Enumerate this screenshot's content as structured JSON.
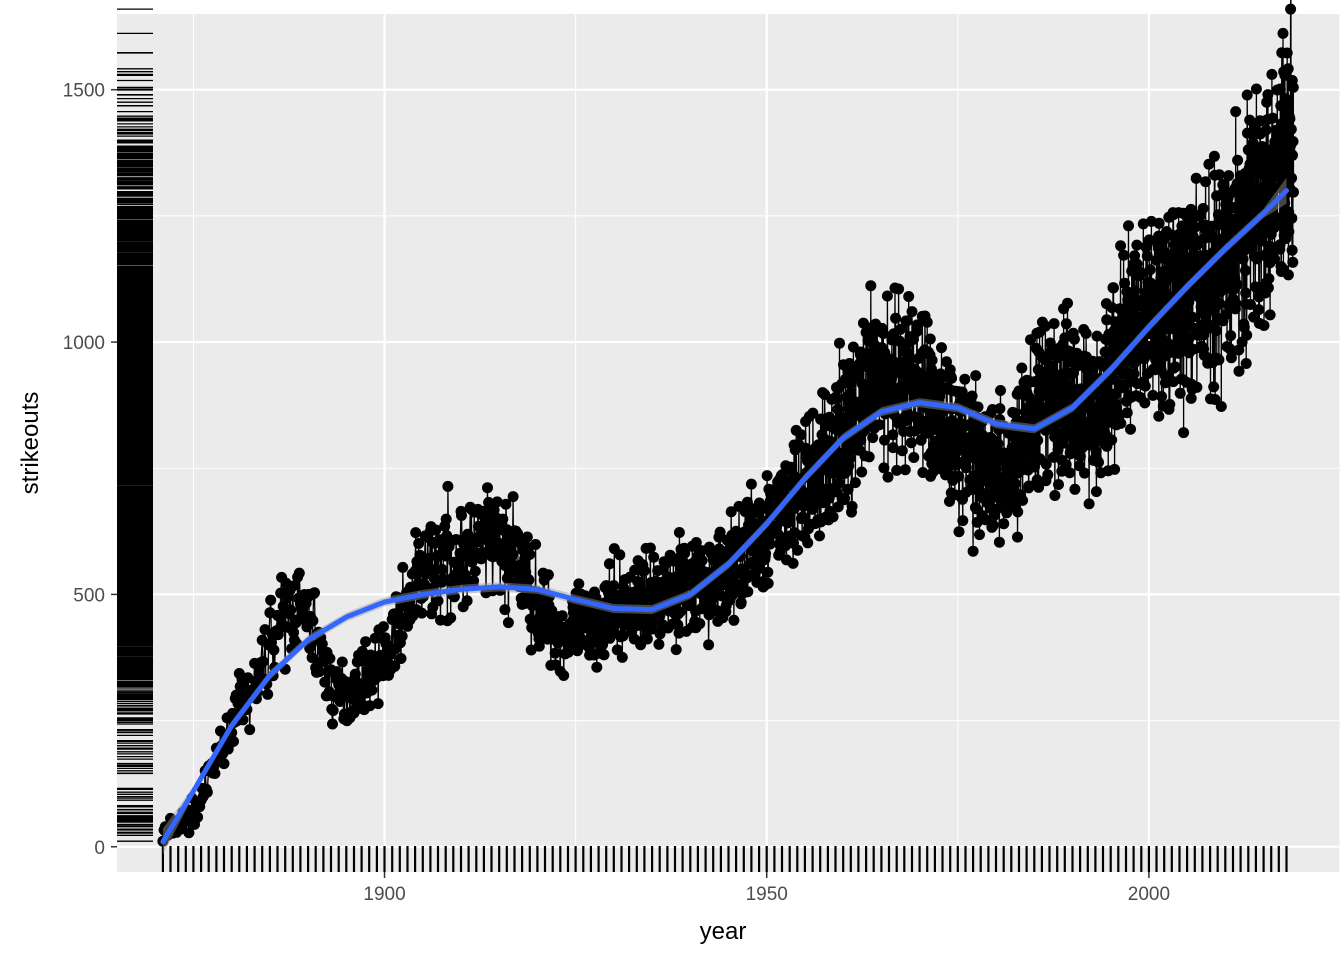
{
  "chart_data": {
    "type": "line",
    "title": "",
    "xlabel": "year",
    "ylabel": "strikeouts",
    "xlim": [
      1865,
      2025
    ],
    "ylim": [
      -50,
      1650
    ],
    "x_ticks": [
      1900,
      1950,
      2000
    ],
    "y_ticks": [
      0,
      500,
      1000,
      1500
    ],
    "x_tick_labels": [
      "1900",
      "1950",
      "2000"
    ],
    "y_tick_labels": [
      "0",
      "500",
      "1000",
      "1500"
    ],
    "grid": true,
    "legend": "none",
    "x_range": [
      1871,
      2018
    ],
    "rug": {
      "x": true,
      "y": true
    },
    "series": [
      {
        "marks": "points connected by line",
        "color": "#000000",
        "x_range": [
          1871,
          2018
        ],
        "y_approx": [
          [
            1871,
            25
          ],
          [
            1875,
            70
          ],
          [
            1878,
            190
          ],
          [
            1880,
            260
          ],
          [
            1883,
            320
          ],
          [
            1885,
            420
          ],
          [
            1888,
            480
          ],
          [
            1890,
            440
          ],
          [
            1893,
            300
          ],
          [
            1896,
            320
          ],
          [
            1900,
            380
          ],
          [
            1903,
            500
          ],
          [
            1906,
            560
          ],
          [
            1910,
            580
          ],
          [
            1914,
            600
          ],
          [
            1917,
            560
          ],
          [
            1920,
            470
          ],
          [
            1923,
            420
          ],
          [
            1926,
            440
          ],
          [
            1930,
            470
          ],
          [
            1934,
            490
          ],
          [
            1938,
            520
          ],
          [
            1942,
            510
          ],
          [
            1945,
            560
          ],
          [
            1948,
            600
          ],
          [
            1951,
            650
          ],
          [
            1954,
            700
          ],
          [
            1957,
            760
          ],
          [
            1960,
            830
          ],
          [
            1963,
            900
          ],
          [
            1966,
            940
          ],
          [
            1969,
            920
          ],
          [
            1972,
            860
          ],
          [
            1975,
            800
          ],
          [
            1978,
            770
          ],
          [
            1981,
            740
          ],
          [
            1984,
            840
          ],
          [
            1987,
            880
          ],
          [
            1990,
            890
          ],
          [
            1993,
            870
          ],
          [
            1996,
            980
          ],
          [
            1999,
            1050
          ],
          [
            2002,
            1070
          ],
          [
            2005,
            1090
          ],
          [
            2008,
            1130
          ],
          [
            2011,
            1200
          ],
          [
            2014,
            1280
          ],
          [
            2017,
            1380
          ],
          [
            2018,
            1400
          ]
        ]
      },
      {
        "marks": "smooth trend line",
        "color": "#3366ff",
        "x": [
          1871,
          1875,
          1880,
          1885,
          1890,
          1895,
          1900,
          1905,
          1910,
          1915,
          1920,
          1925,
          1930,
          1935,
          1940,
          1945,
          1950,
          1955,
          1960,
          1965,
          1970,
          1975,
          1980,
          1985,
          1990,
          1995,
          2000,
          2005,
          2010,
          2015,
          2018
        ],
        "y": [
          10,
          110,
          240,
          340,
          410,
          455,
          485,
          500,
          510,
          515,
          510,
          490,
          472,
          470,
          500,
          560,
          640,
          730,
          810,
          862,
          880,
          870,
          838,
          828,
          870,
          945,
          1030,
          1110,
          1185,
          1255,
          1300
        ]
      }
    ]
  }
}
